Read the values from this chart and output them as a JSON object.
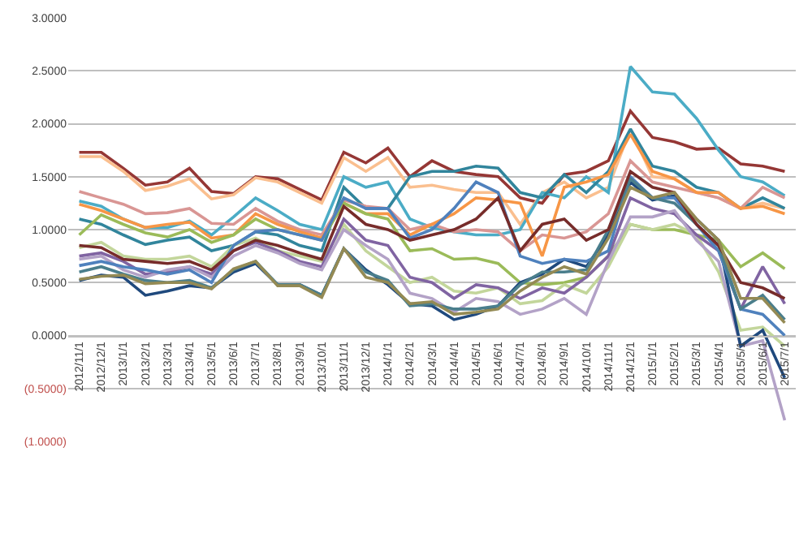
{
  "chart_data": {
    "type": "line",
    "categories": [
      "2012/11/1",
      "2012/12/1",
      "2013/1/1",
      "2013/2/1",
      "2013/3/1",
      "2013/4/1",
      "2013/5/1",
      "2013/6/1",
      "2013/7/1",
      "2013/8/1",
      "2013/9/1",
      "2013/10/1",
      "2013/11/1",
      "2013/12/1",
      "2014/1/1",
      "2014/2/1",
      "2014/3/1",
      "2014/4/1",
      "2014/5/1",
      "2014/6/1",
      "2014/7/1",
      "2014/8/1",
      "2014/9/1",
      "2014/10/1",
      "2014/11/1",
      "2014/12/1",
      "2015/1/1",
      "2015/2/1",
      "2015/3/1",
      "2015/4/1",
      "2015/5/1",
      "2015/6/1",
      "2015/7/1"
    ],
    "ylim": [
      -1,
      3
    ],
    "yticks": [
      {
        "value": 3,
        "label": "3.0000"
      },
      {
        "value": 2.5,
        "label": "2.5000"
      },
      {
        "value": 2,
        "label": "2.0000"
      },
      {
        "value": 1.5,
        "label": "1.5000"
      },
      {
        "value": 1,
        "label": "1.0000"
      },
      {
        "value": 0.5,
        "label": "0.5000"
      },
      {
        "value": 0,
        "label": "0.0000"
      },
      {
        "value": -0.5,
        "label": "(0.5000)"
      },
      {
        "value": -1,
        "label": "(1.0000)"
      }
    ],
    "grid": "y",
    "marker": "none",
    "line_style": "solid",
    "series": [
      {
        "color": "#953735",
        "values": [
          1.73,
          1.73,
          1.58,
          1.42,
          1.45,
          1.58,
          1.36,
          1.34,
          1.5,
          1.48,
          1.38,
          1.28,
          1.73,
          1.63,
          1.77,
          1.5,
          1.65,
          1.55,
          1.52,
          1.5,
          1.3,
          1.25,
          1.52,
          1.55,
          1.65,
          2.12,
          1.87,
          1.83,
          1.76,
          1.77,
          1.62,
          1.6,
          1.55
        ]
      },
      {
        "color": "#fabf8f",
        "values": [
          1.69,
          1.69,
          1.55,
          1.37,
          1.41,
          1.48,
          1.29,
          1.33,
          1.49,
          1.45,
          1.35,
          1.25,
          1.68,
          1.55,
          1.68,
          1.4,
          1.42,
          1.38,
          1.35,
          1.35,
          1.05,
          1.35,
          1.45,
          1.3,
          1.4,
          1.95,
          1.5,
          1.48,
          1.35,
          1.3,
          1.2,
          1.25,
          1.2
        ]
      },
      {
        "color": "#4bacc6",
        "values": [
          1.27,
          1.22,
          1.1,
          1.02,
          1.02,
          1.08,
          0.95,
          1.12,
          1.3,
          1.18,
          1.05,
          1.0,
          1.5,
          1.4,
          1.45,
          1.1,
          1.02,
          0.98,
          0.95,
          0.95,
          1.0,
          1.35,
          1.3,
          1.5,
          1.35,
          2.54,
          2.3,
          2.28,
          2.05,
          1.75,
          1.5,
          1.45,
          1.32
        ]
      },
      {
        "color": "#31859c",
        "values": [
          1.1,
          1.05,
          0.95,
          0.86,
          0.9,
          0.93,
          0.8,
          0.85,
          0.98,
          0.95,
          0.85,
          0.8,
          1.4,
          1.2,
          1.2,
          1.5,
          1.55,
          1.55,
          1.6,
          1.58,
          1.35,
          1.3,
          1.52,
          1.35,
          1.55,
          1.95,
          1.6,
          1.55,
          1.4,
          1.35,
          1.2,
          1.3,
          1.2
        ]
      },
      {
        "color": "#d99694",
        "values": [
          1.36,
          1.3,
          1.24,
          1.15,
          1.16,
          1.2,
          1.06,
          1.05,
          1.2,
          1.08,
          1.0,
          0.95,
          1.28,
          1.22,
          1.2,
          1.0,
          1.05,
          0.98,
          1.0,
          0.98,
          0.8,
          0.95,
          0.92,
          0.98,
          1.15,
          1.65,
          1.45,
          1.4,
          1.35,
          1.3,
          1.2,
          1.4,
          1.3
        ]
      },
      {
        "color": "#f79646",
        "values": [
          1.24,
          1.18,
          1.1,
          1.02,
          1.05,
          1.07,
          0.92,
          0.95,
          1.15,
          1.05,
          0.98,
          0.92,
          1.25,
          1.15,
          1.15,
          0.95,
          1.05,
          1.15,
          1.3,
          1.28,
          1.25,
          0.75,
          1.4,
          1.45,
          1.52,
          1.9,
          1.55,
          1.48,
          1.35,
          1.35,
          1.2,
          1.22,
          1.15
        ]
      },
      {
        "color": "#9bbb59",
        "values": [
          0.95,
          1.14,
          1.05,
          0.97,
          0.93,
          1.0,
          0.88,
          0.95,
          1.1,
          1.0,
          0.95,
          0.9,
          1.25,
          1.15,
          1.1,
          0.8,
          0.82,
          0.72,
          0.73,
          0.68,
          0.5,
          0.48,
          0.5,
          0.55,
          0.75,
          1.05,
          1.0,
          1.0,
          0.95,
          0.9,
          0.65,
          0.78,
          0.63
        ]
      },
      {
        "color": "#c3d69b",
        "values": [
          0.83,
          0.88,
          0.75,
          0.72,
          0.72,
          0.75,
          0.65,
          0.85,
          0.92,
          0.8,
          0.75,
          0.7,
          1.05,
          0.8,
          0.65,
          0.5,
          0.55,
          0.42,
          0.4,
          0.45,
          0.3,
          0.33,
          0.48,
          0.4,
          0.65,
          1.05,
          1.0,
          1.05,
          0.95,
          0.6,
          0.05,
          0.08,
          -0.1
        ]
      },
      {
        "color": "#8064a2",
        "values": [
          0.75,
          0.78,
          0.7,
          0.58,
          0.6,
          0.65,
          0.58,
          0.8,
          0.88,
          0.8,
          0.7,
          0.65,
          1.1,
          0.9,
          0.85,
          0.55,
          0.5,
          0.35,
          0.48,
          0.45,
          0.35,
          0.45,
          0.4,
          0.55,
          0.75,
          1.3,
          1.2,
          1.15,
          0.95,
          0.8,
          0.25,
          0.65,
          0.3
        ]
      },
      {
        "color": "#b3a2c7",
        "values": [
          0.72,
          0.75,
          0.62,
          0.55,
          0.62,
          0.65,
          0.55,
          0.75,
          0.85,
          0.78,
          0.68,
          0.62,
          1.0,
          0.85,
          0.72,
          0.4,
          0.35,
          0.22,
          0.35,
          0.32,
          0.2,
          0.25,
          0.35,
          0.2,
          0.7,
          1.12,
          1.12,
          1.18,
          0.9,
          0.7,
          -0.1,
          -0.05,
          -0.8
        ]
      },
      {
        "color": "#1f497d",
        "values": [
          0.52,
          0.57,
          0.55,
          0.38,
          0.42,
          0.47,
          0.45,
          0.6,
          0.68,
          0.48,
          0.48,
          0.38,
          0.82,
          0.62,
          0.48,
          0.3,
          0.28,
          0.15,
          0.2,
          0.28,
          0.5,
          0.58,
          0.72,
          0.65,
          0.95,
          1.45,
          1.28,
          1.32,
          1.1,
          0.9,
          -0.1,
          0.05,
          -0.4
        ]
      },
      {
        "color": "#4f81bd",
        "values": [
          0.66,
          0.7,
          0.65,
          0.62,
          0.58,
          0.62,
          0.5,
          0.85,
          0.98,
          1.0,
          0.95,
          0.9,
          1.3,
          1.2,
          1.2,
          0.92,
          1.0,
          1.2,
          1.45,
          1.35,
          0.75,
          0.68,
          0.72,
          0.7,
          0.8,
          1.5,
          1.3,
          1.3,
          1.05,
          0.8,
          0.25,
          0.2,
          0.0
        ]
      },
      {
        "color": "#4a7e8c",
        "values": [
          0.6,
          0.65,
          0.58,
          0.52,
          0.5,
          0.52,
          0.45,
          0.62,
          0.7,
          0.48,
          0.48,
          0.38,
          0.82,
          0.6,
          0.52,
          0.28,
          0.3,
          0.25,
          0.25,
          0.28,
          0.48,
          0.6,
          0.6,
          0.62,
          1.0,
          1.48,
          1.3,
          1.25,
          1.05,
          0.85,
          0.25,
          0.38,
          0.15
        ]
      },
      {
        "color": "#772c2a",
        "values": [
          0.85,
          0.83,
          0.72,
          0.7,
          0.68,
          0.7,
          0.62,
          0.8,
          0.9,
          0.85,
          0.78,
          0.72,
          1.22,
          1.05,
          1.0,
          0.9,
          0.95,
          1.0,
          1.1,
          1.3,
          0.8,
          1.05,
          1.1,
          0.9,
          1.0,
          1.55,
          1.4,
          1.35,
          1.05,
          0.85,
          0.5,
          0.45,
          0.35
        ]
      },
      {
        "color": "#948a54",
        "values": [
          0.53,
          0.56,
          0.57,
          0.49,
          0.5,
          0.5,
          0.44,
          0.63,
          0.7,
          0.47,
          0.47,
          0.36,
          0.82,
          0.55,
          0.5,
          0.3,
          0.32,
          0.2,
          0.22,
          0.25,
          0.42,
          0.55,
          0.65,
          0.58,
          0.92,
          1.4,
          1.3,
          1.35,
          1.1,
          0.9,
          0.35,
          0.35,
          0.12
        ]
      }
    ]
  }
}
